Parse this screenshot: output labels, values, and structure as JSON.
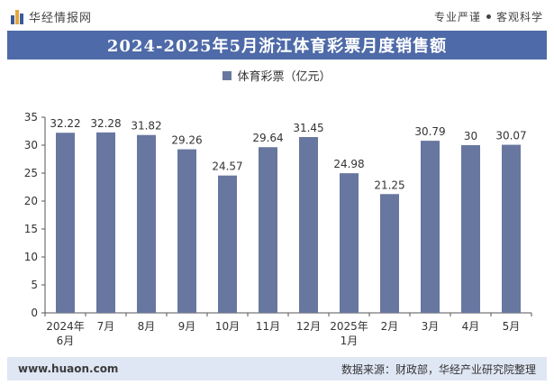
{
  "header": {
    "brand": "华经情报网",
    "tagline_left": "专业严谨",
    "tagline_right": "客观科学"
  },
  "title": "2024-2025年5月浙江体育彩票月度销售额",
  "legend": {
    "label": "体育彩票（亿元）",
    "color": "#6877a0"
  },
  "footer": {
    "site": "www.huaon.com",
    "source": "数据来源：财政部，华经产业研究院整理"
  },
  "chart_data": {
    "type": "bar",
    "categories": [
      "2024年\n6月",
      "7月",
      "8月",
      "9月",
      "10月",
      "11月",
      "12月",
      "2025年\n1月",
      "2月",
      "3月",
      "4月",
      "5月"
    ],
    "series": [
      {
        "name": "体育彩票（亿元）",
        "values": [
          32.22,
          32.28,
          31.82,
          29.26,
          24.57,
          29.64,
          31.45,
          24.98,
          21.25,
          30.79,
          30,
          30.07
        ],
        "labels": [
          "32.22",
          "32.28",
          "31.82",
          "29.26",
          "24.57",
          "29.64",
          "31.45",
          "24.98",
          "21.25",
          "30.79",
          "30",
          "30.07"
        ]
      }
    ],
    "ylim": [
      0,
      35
    ],
    "yticks": [
      0,
      5,
      10,
      15,
      20,
      25,
      30,
      35
    ],
    "grid": false,
    "legend_position": "top-center",
    "bar_color": "#6877a0"
  }
}
